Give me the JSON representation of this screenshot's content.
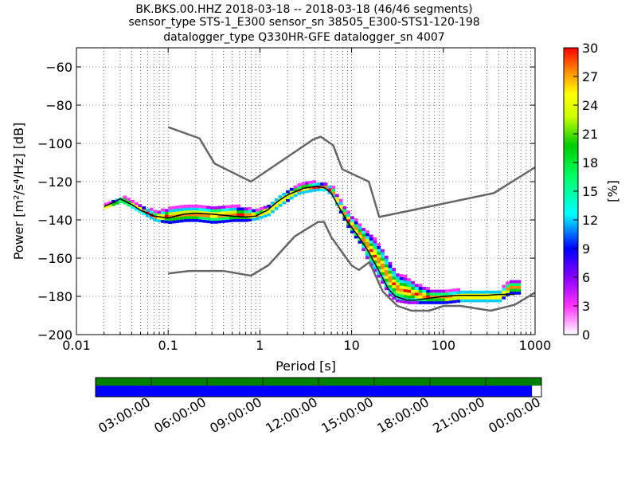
{
  "chart_data": {
    "type": "heatmap",
    "title_lines": [
      "BK.BKS.00.HHZ   2018-03-18 -- 2018-03-18  (46/46 segments)",
      "sensor_type STS-1_E300 sensor_sn 38505_E300-STS1-120-198",
      "datalogger_type Q330HR-GFE datalogger_sn 4007"
    ],
    "xlabel": "Period [s]",
    "ylabel": "Power [m²/s⁴/Hz] [dB]",
    "x_scale": "log",
    "xlim": [
      0.01,
      1000
    ],
    "ylim": [
      -200,
      -50
    ],
    "x_ticks": [
      {
        "value": 0.01,
        "label": "0.01"
      },
      {
        "value": 0.1,
        "label": "0.1"
      },
      {
        "value": 1,
        "label": "1"
      },
      {
        "value": 10,
        "label": "10"
      },
      {
        "value": 100,
        "label": "100"
      },
      {
        "value": 1000,
        "label": "1000"
      }
    ],
    "y_ticks": [
      {
        "value": -60,
        "label": "−60"
      },
      {
        "value": -80,
        "label": "−80"
      },
      {
        "value": -100,
        "label": "−100"
      },
      {
        "value": -120,
        "label": "−120"
      },
      {
        "value": -140,
        "label": "−140"
      },
      {
        "value": -160,
        "label": "−160"
      },
      {
        "value": -180,
        "label": "−180"
      },
      {
        "value": -200,
        "label": "−200"
      }
    ],
    "colorbar": {
      "label": "[%]",
      "range": [
        0,
        30
      ],
      "ticks": [
        {
          "value": 0,
          "label": "0"
        },
        {
          "value": 3,
          "label": "3"
        },
        {
          "value": 6,
          "label": "6"
        },
        {
          "value": 9,
          "label": "9"
        },
        {
          "value": 12,
          "label": "12"
        },
        {
          "value": 15,
          "label": "15"
        },
        {
          "value": 18,
          "label": "18"
        },
        {
          "value": 21,
          "label": "21"
        },
        {
          "value": 24,
          "label": "24"
        },
        {
          "value": 27,
          "label": "27"
        },
        {
          "value": 30,
          "label": "30"
        }
      ]
    },
    "high_noise_model": {
      "period": [
        0.1,
        0.22,
        0.32,
        0.8,
        3.8,
        4.6,
        6.3,
        7.9,
        15.4,
        20,
        354.8,
        1000
      ],
      "power": [
        -91.5,
        -97.4,
        -110.5,
        -120,
        -98,
        -96.5,
        -101,
        -113.5,
        -120,
        -138.5,
        -126,
        -112.5
      ]
    },
    "low_noise_model": {
      "period": [
        0.1,
        0.17,
        0.4,
        0.8,
        1.24,
        2.4,
        4.3,
        5,
        6,
        10,
        12,
        15.6,
        21.9,
        31.6,
        45,
        70,
        101,
        154,
        328,
        600,
        1000
      ],
      "power": [
        -168,
        -166.7,
        -166.7,
        -169.2,
        -163.7,
        -148.6,
        -141.1,
        -141.1,
        -149,
        -163.8,
        -166.2,
        -162.1,
        -177.5,
        -185,
        -187.5,
        -187.5,
        -185,
        -185,
        -187.5,
        -184.4,
        -178
      ]
    },
    "mode_curve": {
      "period": [
        0.02,
        0.025,
        0.03,
        0.04,
        0.05,
        0.07,
        0.1,
        0.15,
        0.2,
        0.3,
        0.5,
        0.7,
        0.9,
        1.2,
        1.6,
        2,
        2.5,
        3,
        4,
        5,
        6,
        7,
        9,
        12,
        15,
        20,
        25,
        30,
        40,
        50,
        70,
        100,
        150,
        200,
        300,
        400,
        600
      ],
      "power": [
        -133,
        -131,
        -129,
        -132,
        -135,
        -138,
        -139,
        -137,
        -136.5,
        -137,
        -138,
        -138.5,
        -138,
        -135,
        -130,
        -127,
        -125,
        -123.5,
        -122.5,
        -123,
        -126,
        -132,
        -141,
        -149,
        -156,
        -167,
        -176,
        -180,
        -182,
        -182,
        -181,
        -180,
        -179.5,
        -179.5,
        -179.5,
        -179,
        -179
      ]
    },
    "cloud_band": {
      "period": [
        0.02,
        0.03,
        0.05,
        0.07,
        0.1,
        0.15,
        0.2,
        0.3,
        0.5,
        0.7,
        0.9,
        1.2,
        1.6,
        2,
        2.5,
        3,
        4,
        5,
        6,
        7,
        9,
        12,
        15,
        20,
        25,
        30,
        40,
        50,
        70,
        100,
        150,
        200,
        300,
        400,
        500,
        700
      ],
      "upper": [
        -132,
        -128,
        -133,
        -136,
        -134,
        -133,
        -133,
        -133,
        -133,
        -134,
        -135,
        -132,
        -127,
        -124,
        -122,
        -120.5,
        -120.5,
        -121,
        -123,
        -129,
        -137,
        -143,
        -147,
        -154,
        -162,
        -168,
        -171,
        -174,
        -177,
        -177,
        -177,
        -177,
        -177,
        -177,
        -172,
        -172
      ],
      "lower": [
        -134,
        -131,
        -137,
        -141,
        -142,
        -141,
        -141,
        -142,
        -141,
        -141,
        -140,
        -138,
        -133,
        -130,
        -127,
        -126,
        -125,
        -125,
        -128,
        -135,
        -145,
        -153,
        -163,
        -172,
        -180,
        -183,
        -184,
        -184,
        -184,
        -184,
        -183,
        -183,
        -183,
        -183,
        -179,
        -179
      ]
    },
    "availability": {
      "time_labels": [
        "03:00:00",
        "06:00:00",
        "09:00:00",
        "12:00:00",
        "15:00:00",
        "18:00:00",
        "21:00:00",
        "00:00:00"
      ],
      "data_fraction": 0.979,
      "gap_fraction": 0.021,
      "colors": {
        "data": "#0000ff",
        "gap": "#ffffff",
        "top_strip": "#008000"
      }
    }
  }
}
